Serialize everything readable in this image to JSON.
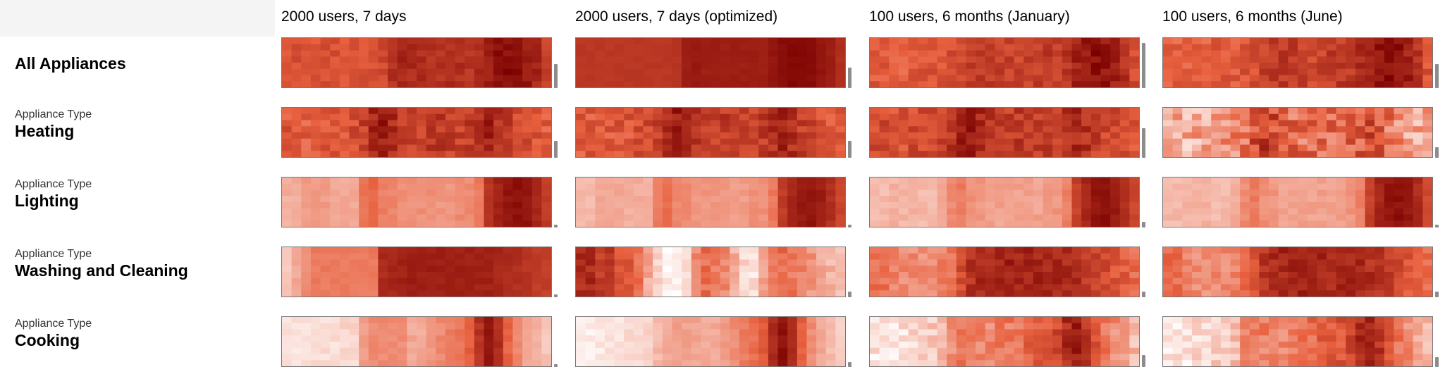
{
  "columns": [
    "2000 users, 7 days",
    "2000 users, 7 days (optimized)",
    "100 users, 6 months (January)",
    "100 users, 6 months (June)"
  ],
  "rows": [
    {
      "subtitle": "",
      "title": "All Appliances"
    },
    {
      "subtitle": "Appliance Type",
      "title": "Heating"
    },
    {
      "subtitle": "Appliance Type",
      "title": "Lighting"
    },
    {
      "subtitle": "Appliance Type",
      "title": "Washing and Cleaning"
    },
    {
      "subtitle": "Appliance Type",
      "title": "Cooking"
    }
  ],
  "chart_data": {
    "type": "heatmap",
    "color_scale": {
      "low": "#ffffff",
      "mid": "#e8603e",
      "high": "#7a0000"
    },
    "grid": {
      "columns_per_cell": 28,
      "rows_per_cell": 8
    },
    "cells": [
      [
        {
          "profile": [
            0.62,
            0.62,
            0.6,
            0.6,
            0.62,
            0.62,
            0.6,
            0.62,
            0.62,
            0.64,
            0.66,
            0.78,
            0.82,
            0.8,
            0.78,
            0.76,
            0.76,
            0.78,
            0.78,
            0.76,
            0.8,
            0.86,
            0.92,
            0.94,
            0.94,
            0.88,
            0.82,
            0.7
          ],
          "noise": 0.06,
          "seed": 11,
          "scale_frac": 0.48
        },
        {
          "profile": [
            0.74,
            0.74,
            0.74,
            0.74,
            0.74,
            0.74,
            0.74,
            0.74,
            0.74,
            0.74,
            0.76,
            0.86,
            0.88,
            0.86,
            0.86,
            0.86,
            0.86,
            0.86,
            0.86,
            0.86,
            0.9,
            0.94,
            0.96,
            0.96,
            0.94,
            0.9,
            0.86,
            0.78
          ],
          "noise": 0.015,
          "seed": 13,
          "scale_frac": 0.42
        },
        {
          "profile": [
            0.58,
            0.58,
            0.56,
            0.56,
            0.58,
            0.6,
            0.6,
            0.6,
            0.62,
            0.66,
            0.7,
            0.74,
            0.72,
            0.7,
            0.68,
            0.68,
            0.7,
            0.7,
            0.72,
            0.72,
            0.76,
            0.84,
            0.9,
            0.92,
            0.9,
            0.84,
            0.76,
            0.64
          ],
          "noise": 0.08,
          "seed": 17,
          "scale_frac": 0.92
        },
        {
          "profile": [
            0.56,
            0.56,
            0.54,
            0.54,
            0.56,
            0.58,
            0.58,
            0.58,
            0.6,
            0.64,
            0.7,
            0.74,
            0.72,
            0.7,
            0.68,
            0.68,
            0.7,
            0.72,
            0.72,
            0.74,
            0.78,
            0.86,
            0.92,
            0.94,
            0.92,
            0.86,
            0.76,
            0.62
          ],
          "noise": 0.09,
          "seed": 19,
          "scale_frac": 0.48
        }
      ],
      [
        {
          "profile": [
            0.58,
            0.58,
            0.56,
            0.58,
            0.6,
            0.6,
            0.62,
            0.64,
            0.7,
            0.82,
            0.86,
            0.8,
            0.74,
            0.7,
            0.7,
            0.72,
            0.72,
            0.7,
            0.7,
            0.72,
            0.78,
            0.84,
            0.78,
            0.7,
            0.66,
            0.62,
            0.6,
            0.58
          ],
          "noise": 0.1,
          "seed": 23,
          "scale_frac": 0.34
        },
        {
          "profile": [
            0.58,
            0.58,
            0.56,
            0.58,
            0.6,
            0.6,
            0.62,
            0.64,
            0.7,
            0.82,
            0.86,
            0.8,
            0.74,
            0.7,
            0.7,
            0.72,
            0.72,
            0.7,
            0.7,
            0.72,
            0.78,
            0.84,
            0.78,
            0.7,
            0.66,
            0.62,
            0.6,
            0.58
          ],
          "noise": 0.1,
          "seed": 29,
          "scale_frac": 0.34
        },
        {
          "profile": [
            0.64,
            0.64,
            0.62,
            0.62,
            0.64,
            0.66,
            0.68,
            0.7,
            0.76,
            0.84,
            0.86,
            0.8,
            0.74,
            0.7,
            0.7,
            0.72,
            0.72,
            0.7,
            0.7,
            0.72,
            0.76,
            0.8,
            0.76,
            0.7,
            0.66,
            0.64,
            0.62,
            0.6
          ],
          "noise": 0.1,
          "seed": 31,
          "scale_frac": 0.6
        },
        {
          "profile": [
            0.3,
            0.28,
            0.28,
            0.3,
            0.32,
            0.34,
            0.38,
            0.42,
            0.5,
            0.62,
            0.7,
            0.62,
            0.56,
            0.52,
            0.5,
            0.52,
            0.54,
            0.52,
            0.5,
            0.52,
            0.58,
            0.62,
            0.56,
            0.48,
            0.4,
            0.34,
            0.3,
            0.28
          ],
          "noise": 0.18,
          "seed": 37,
          "scale_frac": 0.22
        }
      ],
      [
        {
          "profile": [
            0.28,
            0.28,
            0.34,
            0.34,
            0.34,
            0.3,
            0.3,
            0.3,
            0.48,
            0.52,
            0.44,
            0.42,
            0.38,
            0.38,
            0.38,
            0.38,
            0.36,
            0.36,
            0.4,
            0.4,
            0.46,
            0.76,
            0.84,
            0.9,
            0.92,
            0.9,
            0.82,
            0.72
          ],
          "noise": 0.03,
          "seed": 41,
          "scale_frac": 0.06
        },
        {
          "profile": [
            0.24,
            0.24,
            0.3,
            0.3,
            0.3,
            0.28,
            0.28,
            0.28,
            0.44,
            0.5,
            0.42,
            0.4,
            0.36,
            0.36,
            0.36,
            0.36,
            0.34,
            0.34,
            0.38,
            0.38,
            0.46,
            0.72,
            0.82,
            0.88,
            0.9,
            0.86,
            0.78,
            0.68
          ],
          "noise": 0.03,
          "seed": 43,
          "scale_frac": 0.06
        },
        {
          "profile": [
            0.24,
            0.24,
            0.26,
            0.26,
            0.26,
            0.24,
            0.24,
            0.28,
            0.4,
            0.46,
            0.38,
            0.36,
            0.32,
            0.32,
            0.32,
            0.32,
            0.32,
            0.32,
            0.34,
            0.36,
            0.44,
            0.7,
            0.82,
            0.9,
            0.92,
            0.88,
            0.8,
            0.66
          ],
          "noise": 0.04,
          "seed": 47,
          "scale_frac": 0.12
        },
        {
          "profile": [
            0.24,
            0.24,
            0.26,
            0.26,
            0.26,
            0.24,
            0.24,
            0.28,
            0.4,
            0.46,
            0.38,
            0.36,
            0.32,
            0.32,
            0.32,
            0.32,
            0.32,
            0.32,
            0.34,
            0.36,
            0.44,
            0.7,
            0.82,
            0.9,
            0.92,
            0.88,
            0.8,
            0.66
          ],
          "noise": 0.04,
          "seed": 53,
          "scale_frac": 0.06
        }
      ],
      [
        {
          "profile": [
            0.2,
            0.3,
            0.4,
            0.46,
            0.46,
            0.46,
            0.46,
            0.46,
            0.46,
            0.46,
            0.8,
            0.82,
            0.84,
            0.86,
            0.86,
            0.86,
            0.86,
            0.86,
            0.86,
            0.84,
            0.84,
            0.84,
            0.82,
            0.8,
            0.78,
            0.76,
            0.72,
            0.7
          ],
          "noise": 0.03,
          "seed": 59,
          "scale_frac": 0.06
        },
        {
          "profile": [
            0.8,
            0.8,
            0.7,
            0.72,
            0.62,
            0.58,
            0.5,
            0.3,
            0.14,
            0.06,
            0.04,
            0.1,
            0.4,
            0.5,
            0.44,
            0.4,
            0.28,
            0.14,
            0.1,
            0.3,
            0.46,
            0.52,
            0.46,
            0.42,
            0.36,
            0.3,
            0.26,
            0.2
          ],
          "noise": 0.08,
          "seed": 61,
          "scale_frac": 0.12
        },
        {
          "profile": [
            0.5,
            0.5,
            0.44,
            0.4,
            0.4,
            0.4,
            0.4,
            0.44,
            0.5,
            0.64,
            0.76,
            0.8,
            0.82,
            0.84,
            0.84,
            0.82,
            0.82,
            0.82,
            0.82,
            0.82,
            0.8,
            0.78,
            0.74,
            0.7,
            0.64,
            0.6,
            0.56,
            0.52
          ],
          "noise": 0.08,
          "seed": 67,
          "scale_frac": 0.12
        },
        {
          "profile": [
            0.5,
            0.5,
            0.44,
            0.4,
            0.4,
            0.4,
            0.4,
            0.44,
            0.5,
            0.64,
            0.76,
            0.8,
            0.82,
            0.84,
            0.84,
            0.82,
            0.82,
            0.82,
            0.82,
            0.82,
            0.8,
            0.78,
            0.74,
            0.7,
            0.64,
            0.6,
            0.56,
            0.52
          ],
          "noise": 0.08,
          "seed": 71,
          "scale_frac": 0.12
        }
      ],
      [
        {
          "profile": [
            0.1,
            0.1,
            0.1,
            0.12,
            0.12,
            0.12,
            0.14,
            0.14,
            0.34,
            0.4,
            0.4,
            0.4,
            0.38,
            0.3,
            0.3,
            0.36,
            0.4,
            0.44,
            0.48,
            0.56,
            0.76,
            0.9,
            0.78,
            0.54,
            0.4,
            0.32,
            0.26,
            0.2
          ],
          "noise": 0.04,
          "seed": 73,
          "scale_frac": 0.06
        },
        {
          "profile": [
            0.06,
            0.06,
            0.08,
            0.1,
            0.1,
            0.12,
            0.14,
            0.16,
            0.24,
            0.3,
            0.32,
            0.32,
            0.32,
            0.3,
            0.3,
            0.34,
            0.4,
            0.46,
            0.5,
            0.58,
            0.8,
            0.92,
            0.8,
            0.56,
            0.4,
            0.3,
            0.24,
            0.18
          ],
          "noise": 0.04,
          "seed": 79,
          "scale_frac": 0.1
        },
        {
          "profile": [
            0.1,
            0.1,
            0.1,
            0.12,
            0.14,
            0.16,
            0.18,
            0.24,
            0.4,
            0.44,
            0.44,
            0.44,
            0.42,
            0.44,
            0.46,
            0.5,
            0.54,
            0.58,
            0.6,
            0.66,
            0.8,
            0.86,
            0.76,
            0.6,
            0.48,
            0.4,
            0.32,
            0.24
          ],
          "noise": 0.1,
          "seed": 83,
          "scale_frac": 0.24
        },
        {
          "profile": [
            0.1,
            0.1,
            0.1,
            0.12,
            0.14,
            0.16,
            0.18,
            0.24,
            0.4,
            0.44,
            0.44,
            0.44,
            0.42,
            0.44,
            0.46,
            0.5,
            0.54,
            0.58,
            0.6,
            0.66,
            0.8,
            0.86,
            0.76,
            0.6,
            0.48,
            0.4,
            0.32,
            0.24
          ],
          "noise": 0.1,
          "seed": 89,
          "scale_frac": 0.2
        }
      ]
    ]
  }
}
